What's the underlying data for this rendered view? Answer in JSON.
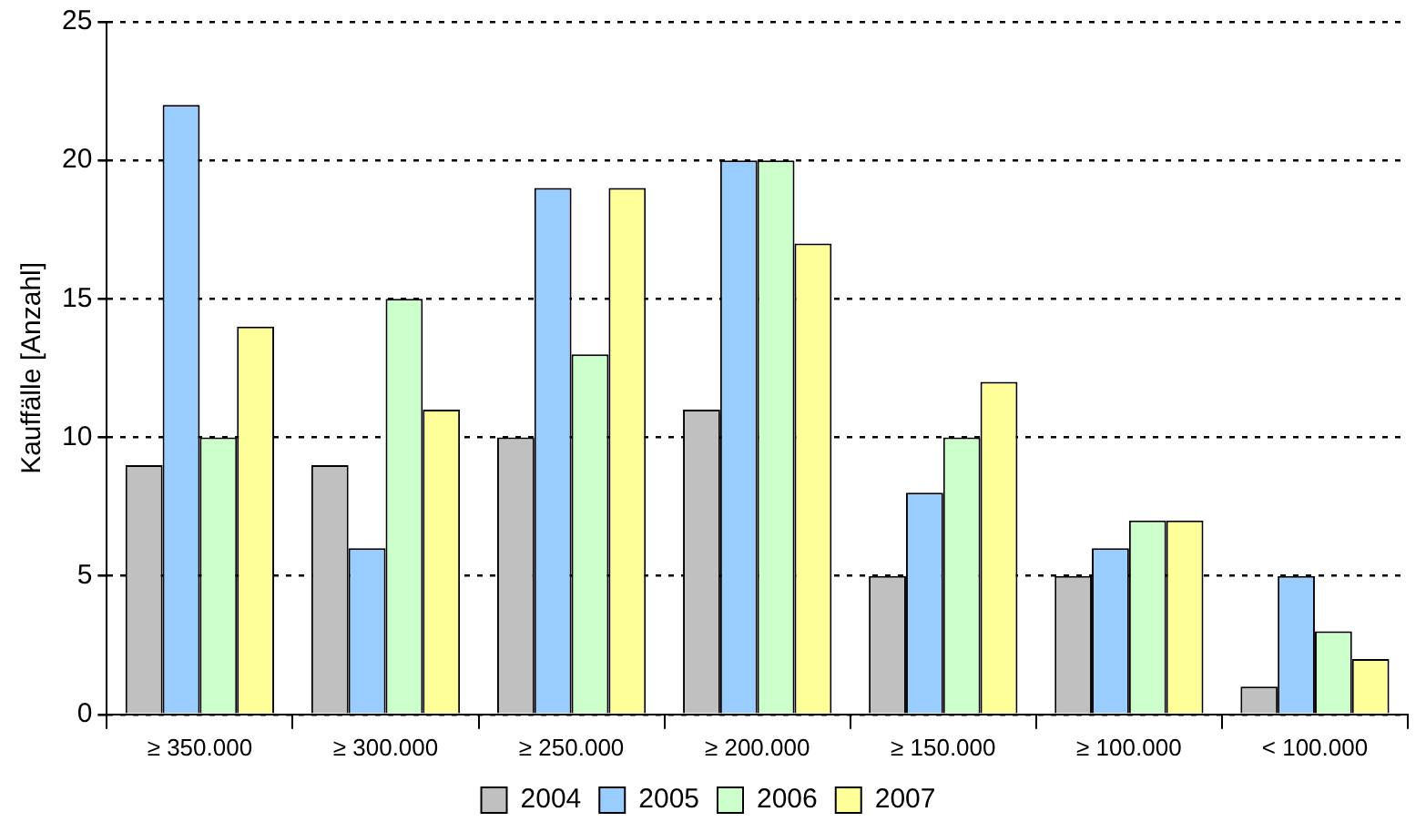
{
  "chart_data": {
    "type": "bar",
    "ylabel": "Kauffälle [Anzahl]",
    "categories": [
      "≥ 350.000",
      "≥ 300.000",
      "≥ 250.000",
      "≥ 200.000",
      "≥ 150.000",
      "≥ 100.000",
      "< 100.000"
    ],
    "series": [
      {
        "name": "2004",
        "color": "#c0c0c0",
        "values": [
          9,
          9,
          10,
          11,
          5,
          5,
          1
        ]
      },
      {
        "name": "2005",
        "color": "#99ccff",
        "values": [
          22,
          6,
          19,
          20,
          8,
          6,
          5
        ]
      },
      {
        "name": "2006",
        "color": "#ccffcc",
        "values": [
          10,
          15,
          13,
          20,
          10,
          7,
          3
        ]
      },
      {
        "name": "2007",
        "color": "#ffff99",
        "values": [
          14,
          11,
          19,
          17,
          12,
          7,
          2
        ]
      }
    ],
    "ylim": [
      0,
      25
    ],
    "yticks": [
      0,
      5,
      10,
      15,
      20,
      25
    ],
    "grid": "y",
    "legend": "bottom"
  }
}
